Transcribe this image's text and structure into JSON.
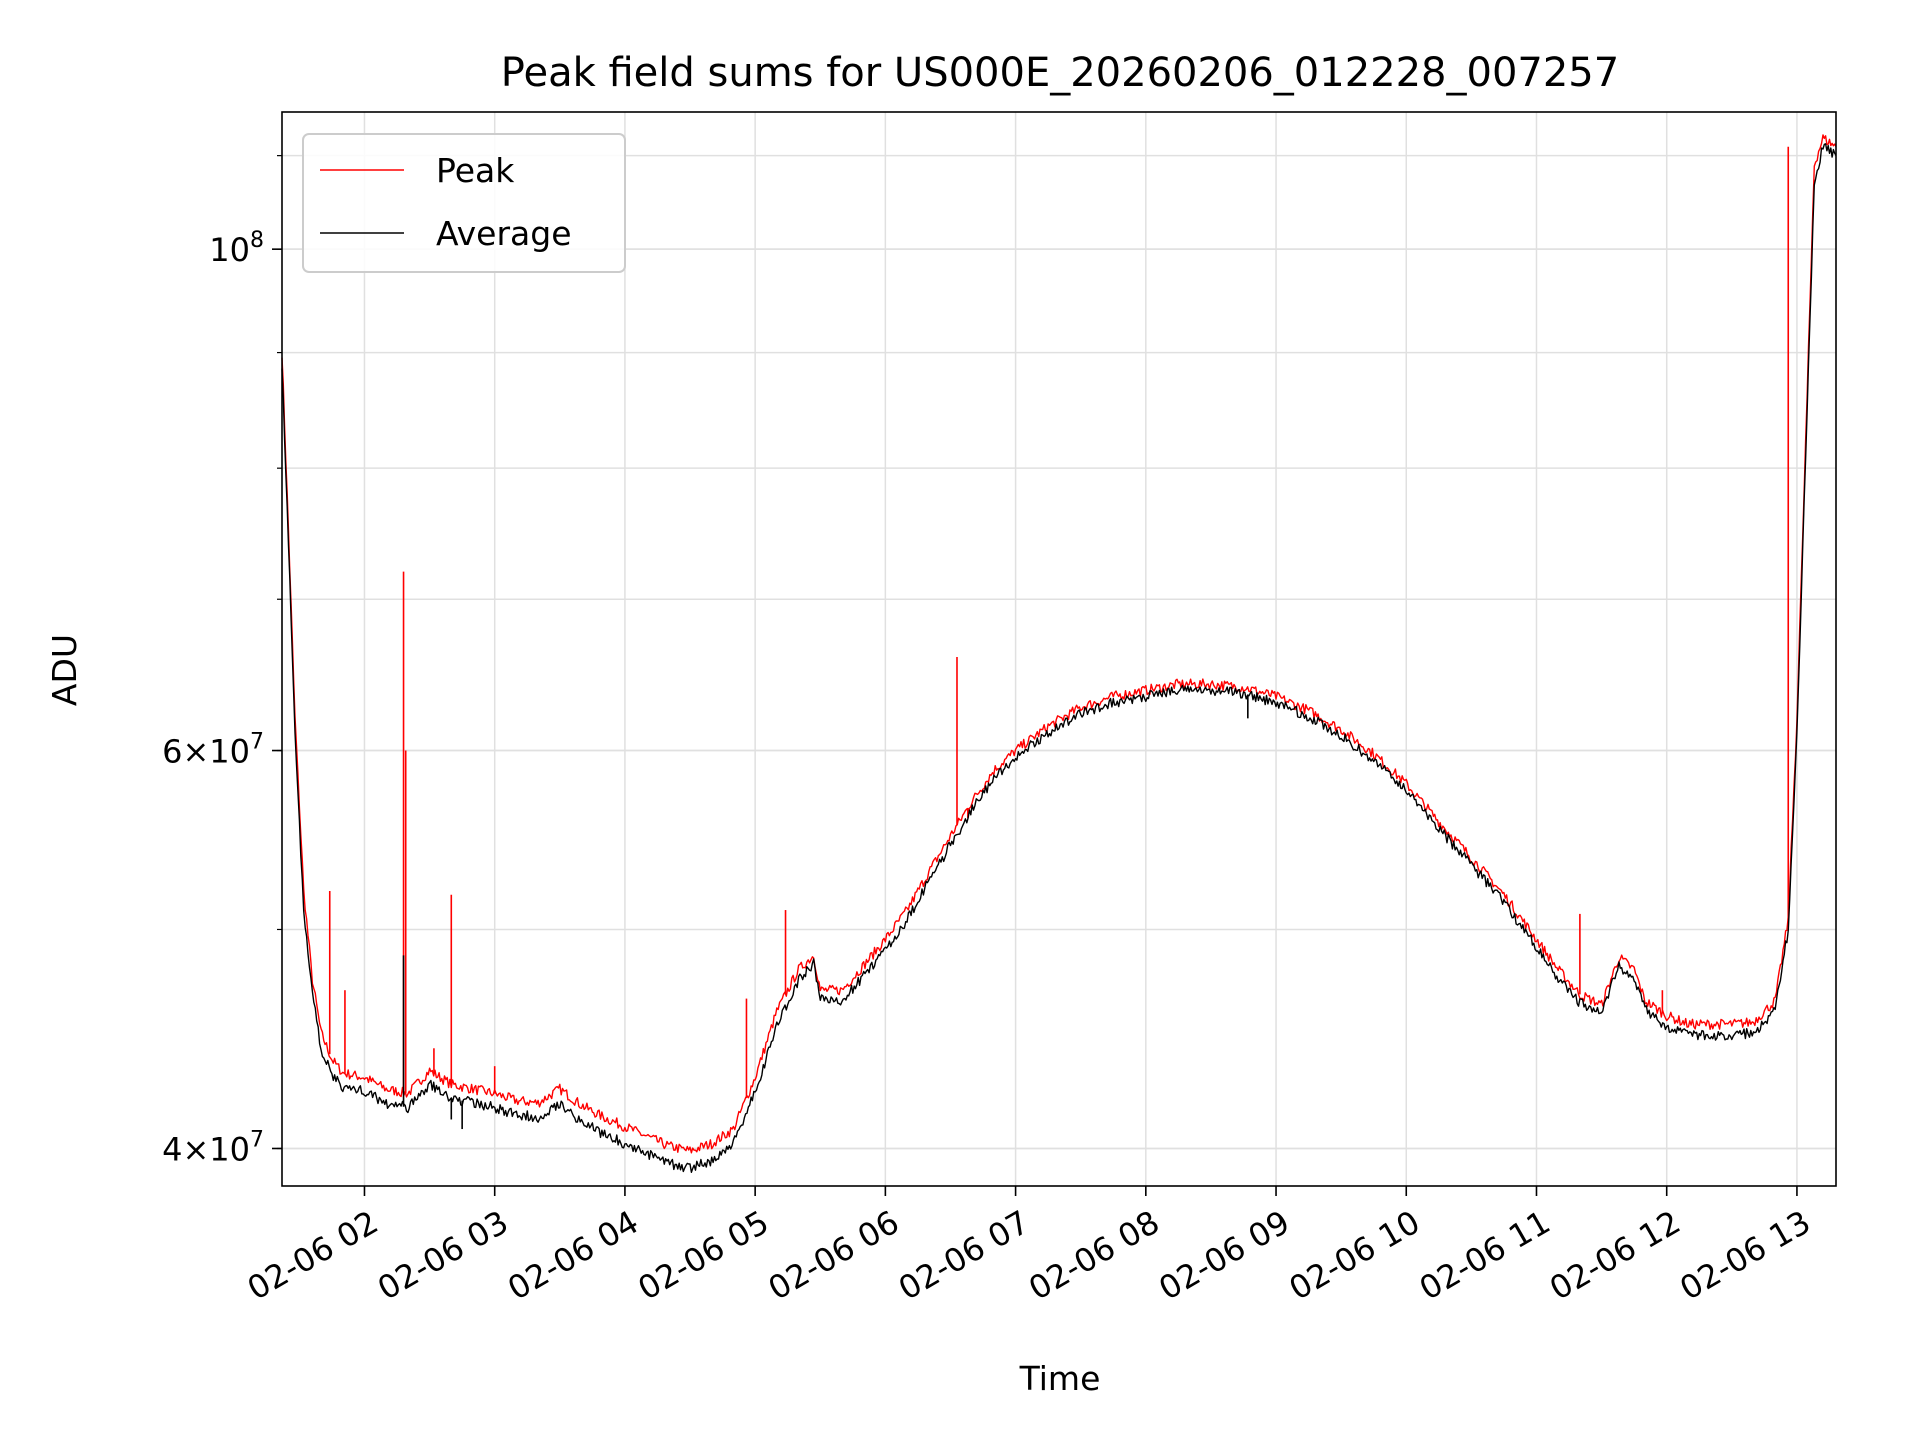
{
  "chart_data": {
    "type": "line",
    "title": "Peak field sums for US000E_20260206_012228_007257",
    "xlabel": "Time",
    "ylabel": "ADU",
    "y_scale": "log",
    "xlim": [
      "2026-02-06 01:22",
      "2026-02-06 13:18"
    ],
    "ylim": [
      38500000,
      115000000
    ],
    "x_ticks": [
      {
        "label": "02-06 02",
        "value": "2026-02-06 02:00"
      },
      {
        "label": "02-06 03",
        "value": "2026-02-06 03:00"
      },
      {
        "label": "02-06 04",
        "value": "2026-02-06 04:00"
      },
      {
        "label": "02-06 05",
        "value": "2026-02-06 05:00"
      },
      {
        "label": "02-06 06",
        "value": "2026-02-06 06:00"
      },
      {
        "label": "02-06 07",
        "value": "2026-02-06 07:00"
      },
      {
        "label": "02-06 08",
        "value": "2026-02-06 08:00"
      },
      {
        "label": "02-06 09",
        "value": "2026-02-06 09:00"
      },
      {
        "label": "02-06 10",
        "value": "2026-02-06 10:00"
      },
      {
        "label": "02-06 11",
        "value": "2026-02-06 11:00"
      },
      {
        "label": "02-06 12",
        "value": "2026-02-06 12:00"
      },
      {
        "label": "02-06 13",
        "value": "2026-02-06 13:00"
      }
    ],
    "y_ticks": [
      {
        "base": "4×10",
        "exp": "7",
        "value": 40000000
      },
      {
        "base": "6×10",
        "exp": "7",
        "value": 60000000
      },
      {
        "base": "10",
        "exp": "8",
        "value": 100000000
      }
    ],
    "grid": true,
    "legend_position": "top-left",
    "colors": {
      "peak": "#ff0000",
      "average": "#000000",
      "grid": "#e0e0e0"
    },
    "series": [
      {
        "name": "Peak",
        "color": "#ff0000",
        "x": [
          "2026-02-06 01:22",
          "2026-02-06 01:25",
          "2026-02-06 01:28",
          "2026-02-06 01:32",
          "2026-02-06 01:36",
          "2026-02-06 01:40",
          "2026-02-06 01:45",
          "2026-02-06 01:50",
          "2026-02-06 02:00",
          "2026-02-06 02:10",
          "2026-02-06 02:20",
          "2026-02-06 02:30",
          "2026-02-06 02:40",
          "2026-02-06 02:50",
          "2026-02-06 03:00",
          "2026-02-06 03:10",
          "2026-02-06 03:20",
          "2026-02-06 03:30",
          "2026-02-06 03:40",
          "2026-02-06 03:50",
          "2026-02-06 04:00",
          "2026-02-06 04:10",
          "2026-02-06 04:20",
          "2026-02-06 04:30",
          "2026-02-06 04:40",
          "2026-02-06 04:50",
          "2026-02-06 05:00",
          "2026-02-06 05:10",
          "2026-02-06 05:20",
          "2026-02-06 05:27",
          "2026-02-06 05:30",
          "2026-02-06 05:40",
          "2026-02-06 05:50",
          "2026-02-06 06:00",
          "2026-02-06 06:10",
          "2026-02-06 06:20",
          "2026-02-06 06:30",
          "2026-02-06 06:40",
          "2026-02-06 06:50",
          "2026-02-06 07:00",
          "2026-02-06 07:15",
          "2026-02-06 07:30",
          "2026-02-06 07:45",
          "2026-02-06 08:00",
          "2026-02-06 08:15",
          "2026-02-06 08:30",
          "2026-02-06 08:45",
          "2026-02-06 09:00",
          "2026-02-06 09:15",
          "2026-02-06 09:30",
          "2026-02-06 09:45",
          "2026-02-06 10:00",
          "2026-02-06 10:15",
          "2026-02-06 10:30",
          "2026-02-06 10:45",
          "2026-02-06 11:00",
          "2026-02-06 11:10",
          "2026-02-06 11:20",
          "2026-02-06 11:30",
          "2026-02-06 11:38",
          "2026-02-06 11:45",
          "2026-02-06 11:50",
          "2026-02-06 12:00",
          "2026-02-06 12:10",
          "2026-02-06 12:20",
          "2026-02-06 12:30",
          "2026-02-06 12:40",
          "2026-02-06 12:50",
          "2026-02-06 12:56",
          "2026-02-06 13:00",
          "2026-02-06 13:04",
          "2026-02-06 13:08",
          "2026-02-06 13:12",
          "2026-02-06 13:18"
        ],
        "y": [
          90000000,
          75000000,
          62000000,
          52000000,
          47500000,
          45000000,
          43800000,
          43200000,
          43000000,
          42500000,
          42300000,
          43300000,
          42700000,
          42500000,
          42300000,
          42000000,
          41900000,
          42500000,
          41800000,
          41300000,
          40900000,
          40500000,
          40100000,
          39900000,
          40200000,
          40800000,
          43000000,
          46000000,
          48000000,
          48700000,
          47000000,
          47000000,
          48200000,
          49500000,
          51000000,
          53000000,
          55000000,
          57000000,
          58800000,
          60000000,
          61500000,
          62700000,
          63400000,
          63800000,
          64200000,
          64200000,
          64000000,
          63400000,
          62500000,
          61300000,
          59800000,
          58000000,
          55800000,
          53800000,
          51800000,
          49500000,
          48000000,
          46800000,
          46300000,
          48600000,
          48000000,
          46500000,
          45800000,
          45400000,
          45400000,
          45400000,
          45500000,
          46500000,
          50500000,
          62000000,
          82000000,
          109000000,
          112000000,
          111000000
        ],
        "spikes": [
          {
            "x": "2026-02-06 01:44",
            "y": 52000000
          },
          {
            "x": "2026-02-06 01:51",
            "y": 47000000
          },
          {
            "x": "2026-02-06 02:18",
            "y": 72000000
          },
          {
            "x": "2026-02-06 02:19",
            "y": 60000000
          },
          {
            "x": "2026-02-06 02:40",
            "y": 51800000
          },
          {
            "x": "2026-02-06 02:32",
            "y": 44300000
          },
          {
            "x": "2026-02-06 03:00",
            "y": 43500000
          },
          {
            "x": "2026-02-06 04:56",
            "y": 46600000
          },
          {
            "x": "2026-02-06 05:14",
            "y": 51000000
          },
          {
            "x": "2026-02-06 06:33",
            "y": 66000000
          },
          {
            "x": "2026-02-06 06:38",
            "y": 56000000
          },
          {
            "x": "2026-02-06 11:20",
            "y": 50800000
          },
          {
            "x": "2026-02-06 11:58",
            "y": 47000000
          },
          {
            "x": "2026-02-06 12:56",
            "y": 111000000
          }
        ]
      },
      {
        "name": "Average",
        "color": "#000000",
        "x": [
          "2026-02-06 01:22",
          "2026-02-06 01:25",
          "2026-02-06 01:28",
          "2026-02-06 01:32",
          "2026-02-06 01:36",
          "2026-02-06 01:40",
          "2026-02-06 01:45",
          "2026-02-06 01:50",
          "2026-02-06 02:00",
          "2026-02-06 02:10",
          "2026-02-06 02:20",
          "2026-02-06 02:30",
          "2026-02-06 02:40",
          "2026-02-06 02:50",
          "2026-02-06 03:00",
          "2026-02-06 03:10",
          "2026-02-06 03:20",
          "2026-02-06 03:30",
          "2026-02-06 03:40",
          "2026-02-06 03:50",
          "2026-02-06 04:00",
          "2026-02-06 04:10",
          "2026-02-06 04:20",
          "2026-02-06 04:30",
          "2026-02-06 04:40",
          "2026-02-06 04:50",
          "2026-02-06 05:00",
          "2026-02-06 05:10",
          "2026-02-06 05:20",
          "2026-02-06 05:27",
          "2026-02-06 05:30",
          "2026-02-06 05:40",
          "2026-02-06 05:50",
          "2026-02-06 06:00",
          "2026-02-06 06:10",
          "2026-02-06 06:20",
          "2026-02-06 06:30",
          "2026-02-06 06:40",
          "2026-02-06 06:50",
          "2026-02-06 07:00",
          "2026-02-06 07:15",
          "2026-02-06 07:30",
          "2026-02-06 07:45",
          "2026-02-06 08:00",
          "2026-02-06 08:15",
          "2026-02-06 08:30",
          "2026-02-06 08:45",
          "2026-02-06 09:00",
          "2026-02-06 09:15",
          "2026-02-06 09:30",
          "2026-02-06 09:45",
          "2026-02-06 10:00",
          "2026-02-06 10:15",
          "2026-02-06 10:30",
          "2026-02-06 10:45",
          "2026-02-06 11:00",
          "2026-02-06 11:10",
          "2026-02-06 11:20",
          "2026-02-06 11:30",
          "2026-02-06 11:38",
          "2026-02-06 11:45",
          "2026-02-06 11:50",
          "2026-02-06 12:00",
          "2026-02-06 12:10",
          "2026-02-06 12:20",
          "2026-02-06 12:30",
          "2026-02-06 12:40",
          "2026-02-06 12:50",
          "2026-02-06 12:56",
          "2026-02-06 13:00",
          "2026-02-06 13:04",
          "2026-02-06 13:08",
          "2026-02-06 13:12",
          "2026-02-06 13:18"
        ],
        "y": [
          89000000,
          74000000,
          61000000,
          51000000,
          46800000,
          44300000,
          43100000,
          42600000,
          42400000,
          41900000,
          41700000,
          42700000,
          42100000,
          41900000,
          41700000,
          41400000,
          41300000,
          41900000,
          41100000,
          40600000,
          40200000,
          39800000,
          39400000,
          39200000,
          39500000,
          40200000,
          42400000,
          45300000,
          47500000,
          48300000,
          46600000,
          46500000,
          47700000,
          49000000,
          50500000,
          52500000,
          54500000,
          56500000,
          58300000,
          59600000,
          61100000,
          62300000,
          63000000,
          63400000,
          63800000,
          63800000,
          63600000,
          63000000,
          62100000,
          60900000,
          59400000,
          57600000,
          55400000,
          53400000,
          51400000,
          49100000,
          47600000,
          46400000,
          45900000,
          48200000,
          47500000,
          46100000,
          45300000,
          44900000,
          44900000,
          44900000,
          45000000,
          46000000,
          50000000,
          61000000,
          81000000,
          107000000,
          111000000,
          110000000
        ],
        "spikes": [
          {
            "x": "2026-02-06 02:18",
            "y": 48700000
          },
          {
            "x": "2026-02-06 02:40",
            "y": 41200000
          },
          {
            "x": "2026-02-06 02:45",
            "y": 40800000
          },
          {
            "x": "2026-02-06 08:47",
            "y": 62000000
          }
        ]
      }
    ]
  }
}
